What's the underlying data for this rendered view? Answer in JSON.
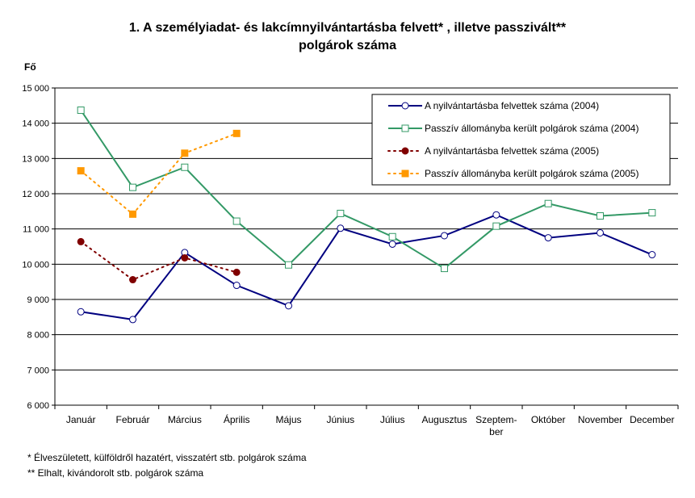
{
  "title": {
    "line1": "1. A személyiadat- és lakcímnyilvántartásba felvett* , illetve passzivált**",
    "line2": "polgárok száma"
  },
  "chart_data": {
    "type": "line",
    "ylabel": "Fő",
    "ylim": [
      6000,
      15000
    ],
    "ytick_step": 1000,
    "ytick_labels": [
      "6 000",
      "7 000",
      "8 000",
      "9 000",
      "10 000",
      "11 000",
      "12 000",
      "13 000",
      "14 000",
      "15 000"
    ],
    "categories": [
      "Január",
      "Február",
      "Március",
      "Április",
      "Május",
      "Június",
      "Július",
      "Augusztus",
      "Szeptem-\nber",
      "Október",
      "November",
      "December"
    ],
    "grid": true,
    "legend_position": "top-right",
    "series": [
      {
        "name": "A nyilvántartásba felvettek száma (2004)",
        "values": [
          8650,
          8430,
          10330,
          9400,
          8820,
          11020,
          10570,
          10810,
          11400,
          10750,
          10890,
          10270
        ],
        "color": "#000080",
        "style": "solid",
        "marker": "circle",
        "marker_fill": "#ffffff"
      },
      {
        "name": "Passzív állományba került polgárok száma (2004)",
        "values": [
          14370,
          12180,
          12750,
          11220,
          9980,
          11440,
          10780,
          9880,
          11080,
          11720,
          11370,
          11460
        ],
        "color": "#339966",
        "style": "solid",
        "marker": "square",
        "marker_fill": "#ffffff"
      },
      {
        "name": "A nyilvántartásba felvettek száma (2005)",
        "values": [
          10640,
          9560,
          10180,
          9770,
          null,
          null,
          null,
          null,
          null,
          null,
          null,
          null
        ],
        "color": "#800000",
        "style": "dotted",
        "marker": "circle",
        "marker_fill": "#800000"
      },
      {
        "name": "Passzív állományba került polgárok száma (2005)",
        "values": [
          12650,
          11420,
          13150,
          13710,
          null,
          null,
          null,
          null,
          null,
          null,
          null,
          null
        ],
        "color": "#ff9900",
        "style": "dotted",
        "marker": "square",
        "marker_fill": "#ff9900"
      }
    ]
  },
  "footnotes": [
    "* Élveszületett, külföldről hazatért, visszatért stb. polgárok száma",
    "** Elhalt, kivándorolt stb. polgárok száma"
  ]
}
